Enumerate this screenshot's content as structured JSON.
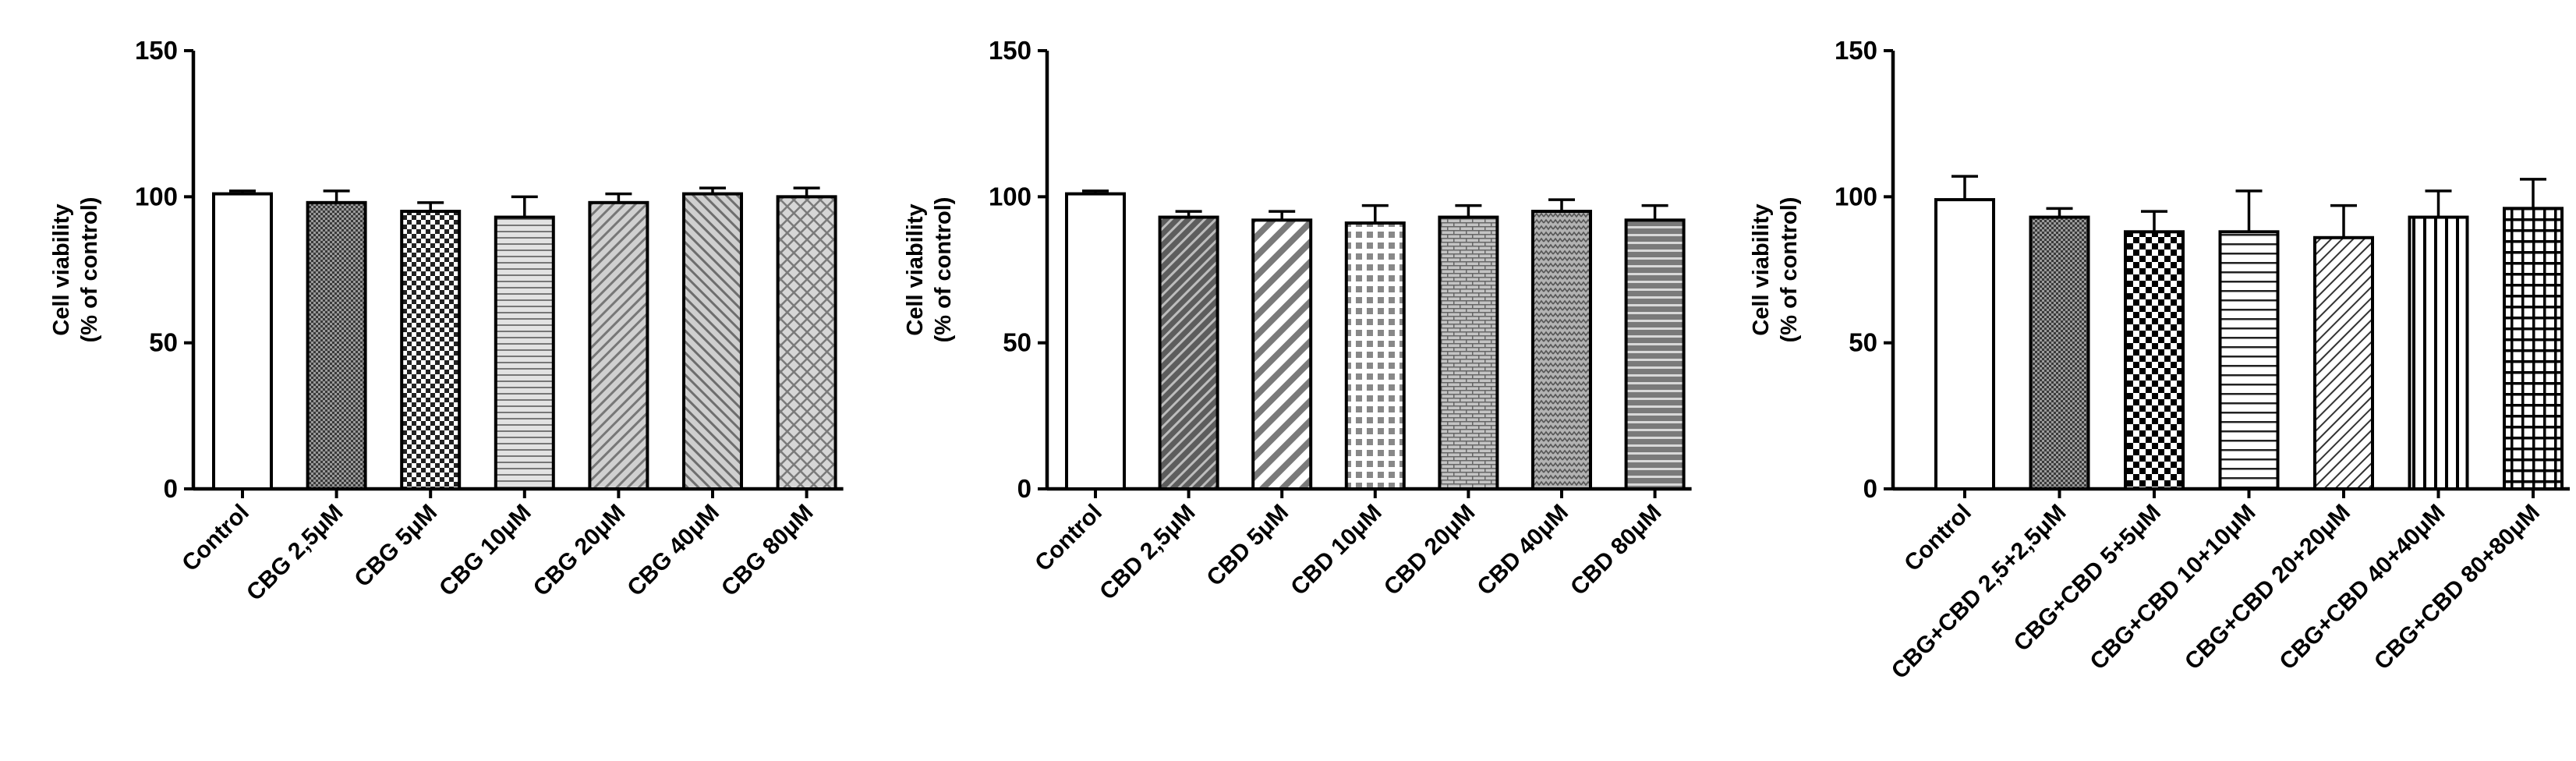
{
  "chart_data": [
    {
      "type": "bar",
      "ylabel_line1": "Cell viability",
      "ylabel_line2": "(% of control)",
      "ylim": [
        0,
        150
      ],
      "yticks": [
        0,
        50,
        100,
        150
      ],
      "grid": false,
      "categories": [
        "Control",
        "CBG 2,5μM",
        "CBG 5μM",
        "CBG 10μM",
        "CBG 20μM",
        "CBG 40μM",
        "CBG 80μM"
      ],
      "values": [
        101,
        98,
        95,
        93,
        98,
        101,
        100
      ],
      "errors": [
        1,
        4,
        3,
        7,
        3,
        2,
        3
      ],
      "patterns": [
        "white",
        "dense-check",
        "checker",
        "hlines",
        "diag-fwd",
        "diag-back",
        "crosshatch"
      ]
    },
    {
      "type": "bar",
      "ylabel_line1": "Cell viability",
      "ylabel_line2": "(% of control)",
      "ylim": [
        0,
        150
      ],
      "yticks": [
        0,
        50,
        100,
        150
      ],
      "grid": false,
      "categories": [
        "Control",
        "CBD 2,5μM",
        "CBD 5μM",
        "CBD 10μM",
        "CBD 20μM",
        "CBD 40μM",
        "CBD 80μM"
      ],
      "values": [
        101,
        93,
        92,
        91,
        93,
        95,
        92
      ],
      "errors": [
        1,
        2,
        3,
        6,
        4,
        4,
        5
      ],
      "patterns": [
        "white",
        "diag-dark",
        "diag-wide",
        "grid-white",
        "brick",
        "zigzag",
        "hlines-dark"
      ]
    },
    {
      "type": "bar",
      "ylabel_line1": "Cell viability",
      "ylabel_line2": "(% of control)",
      "ylim": [
        0,
        150
      ],
      "yticks": [
        0,
        50,
        100,
        150
      ],
      "grid": false,
      "categories": [
        "Control",
        "CBG+CBD 2,5+2,5μM",
        "CBG+CBD 5+5μM",
        "CBG+CBD 10+10μM",
        "CBG+CBD 20+20μM",
        "CBG+CBD 40+40μM",
        "CBG+CBD 80+80μM"
      ],
      "values": [
        99,
        93,
        88,
        88,
        86,
        93,
        96
      ],
      "errors": [
        8,
        3,
        7,
        14,
        11,
        9,
        10
      ],
      "patterns": [
        "white",
        "dense-check",
        "bold-checker",
        "hlines-sparse",
        "diag-thin",
        "vlines",
        "grid-bold"
      ]
    }
  ]
}
